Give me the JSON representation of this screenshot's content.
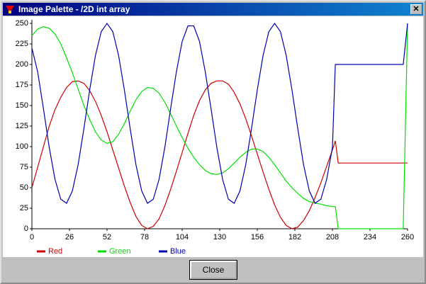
{
  "window": {
    "title": "Image Palette - /2D int array",
    "button": "Close"
  },
  "chart_data": {
    "type": "line",
    "x": [
      0,
      4,
      8,
      12,
      16,
      20,
      24,
      28,
      32,
      36,
      40,
      44,
      48,
      52,
      56,
      60,
      64,
      68,
      72,
      76,
      80,
      84,
      88,
      92,
      96,
      100,
      104,
      108,
      112,
      116,
      120,
      124,
      128,
      132,
      136,
      140,
      144,
      148,
      152,
      156,
      160,
      164,
      168,
      172,
      176,
      180,
      184,
      188,
      192,
      196,
      200,
      204,
      208,
      210,
      212,
      257,
      260
    ],
    "series": [
      {
        "name": "Red",
        "color": "#d00000",
        "values": [
          50,
          75,
          100,
          125,
          145,
          160,
          172,
          179,
          180,
          177,
          168,
          155,
          138,
          118,
          96,
          74,
          52,
          32,
          15,
          4,
          0,
          3,
          12,
          28,
          48,
          70,
          93,
          116,
          138,
          156,
          169,
          177,
          180,
          180,
          176,
          166,
          152,
          134,
          113,
          91,
          69,
          48,
          29,
          14,
          4,
          0,
          2,
          10,
          22,
          38,
          56,
          76,
          96,
          107,
          80,
          80,
          80
        ]
      },
      {
        "name": "Green",
        "color": "#00e000",
        "values": [
          235,
          243,
          246,
          244,
          237,
          225,
          208,
          190,
          170,
          150,
          133,
          118,
          108,
          104,
          106,
          115,
          128,
          143,
          157,
          167,
          172,
          171,
          165,
          154,
          140,
          125,
          111,
          98,
          87,
          78,
          71,
          67,
          66,
          68,
          73,
          80,
          87,
          93,
          97,
          97,
          94,
          87,
          78,
          68,
          58,
          50,
          43,
          37,
          33,
          31,
          30,
          28,
          27,
          27,
          0,
          0,
          250
        ]
      },
      {
        "name": "Blue",
        "color": "#0000b0",
        "values": [
          220,
          191,
          146,
          99,
          60,
          36,
          31,
          46,
          78,
          122,
          169,
          211,
          240,
          250,
          240,
          211,
          169,
          122,
          78,
          46,
          31,
          36,
          60,
          99,
          146,
          191,
          228,
          247,
          247,
          228,
          191,
          146,
          99,
          60,
          36,
          31,
          46,
          78,
          122,
          169,
          211,
          240,
          250,
          240,
          211,
          169,
          122,
          78,
          46,
          31,
          36,
          60,
          99,
          200,
          200,
          200,
          250
        ]
      }
    ],
    "xlim": [
      0,
      260
    ],
    "xticks": [
      0,
      26,
      52,
      78,
      104,
      130,
      156,
      182,
      208,
      234,
      260
    ],
    "ylim": [
      0,
      250
    ],
    "yticks": [
      0,
      25,
      50,
      75,
      100,
      125,
      150,
      175,
      200,
      225,
      250
    ]
  }
}
